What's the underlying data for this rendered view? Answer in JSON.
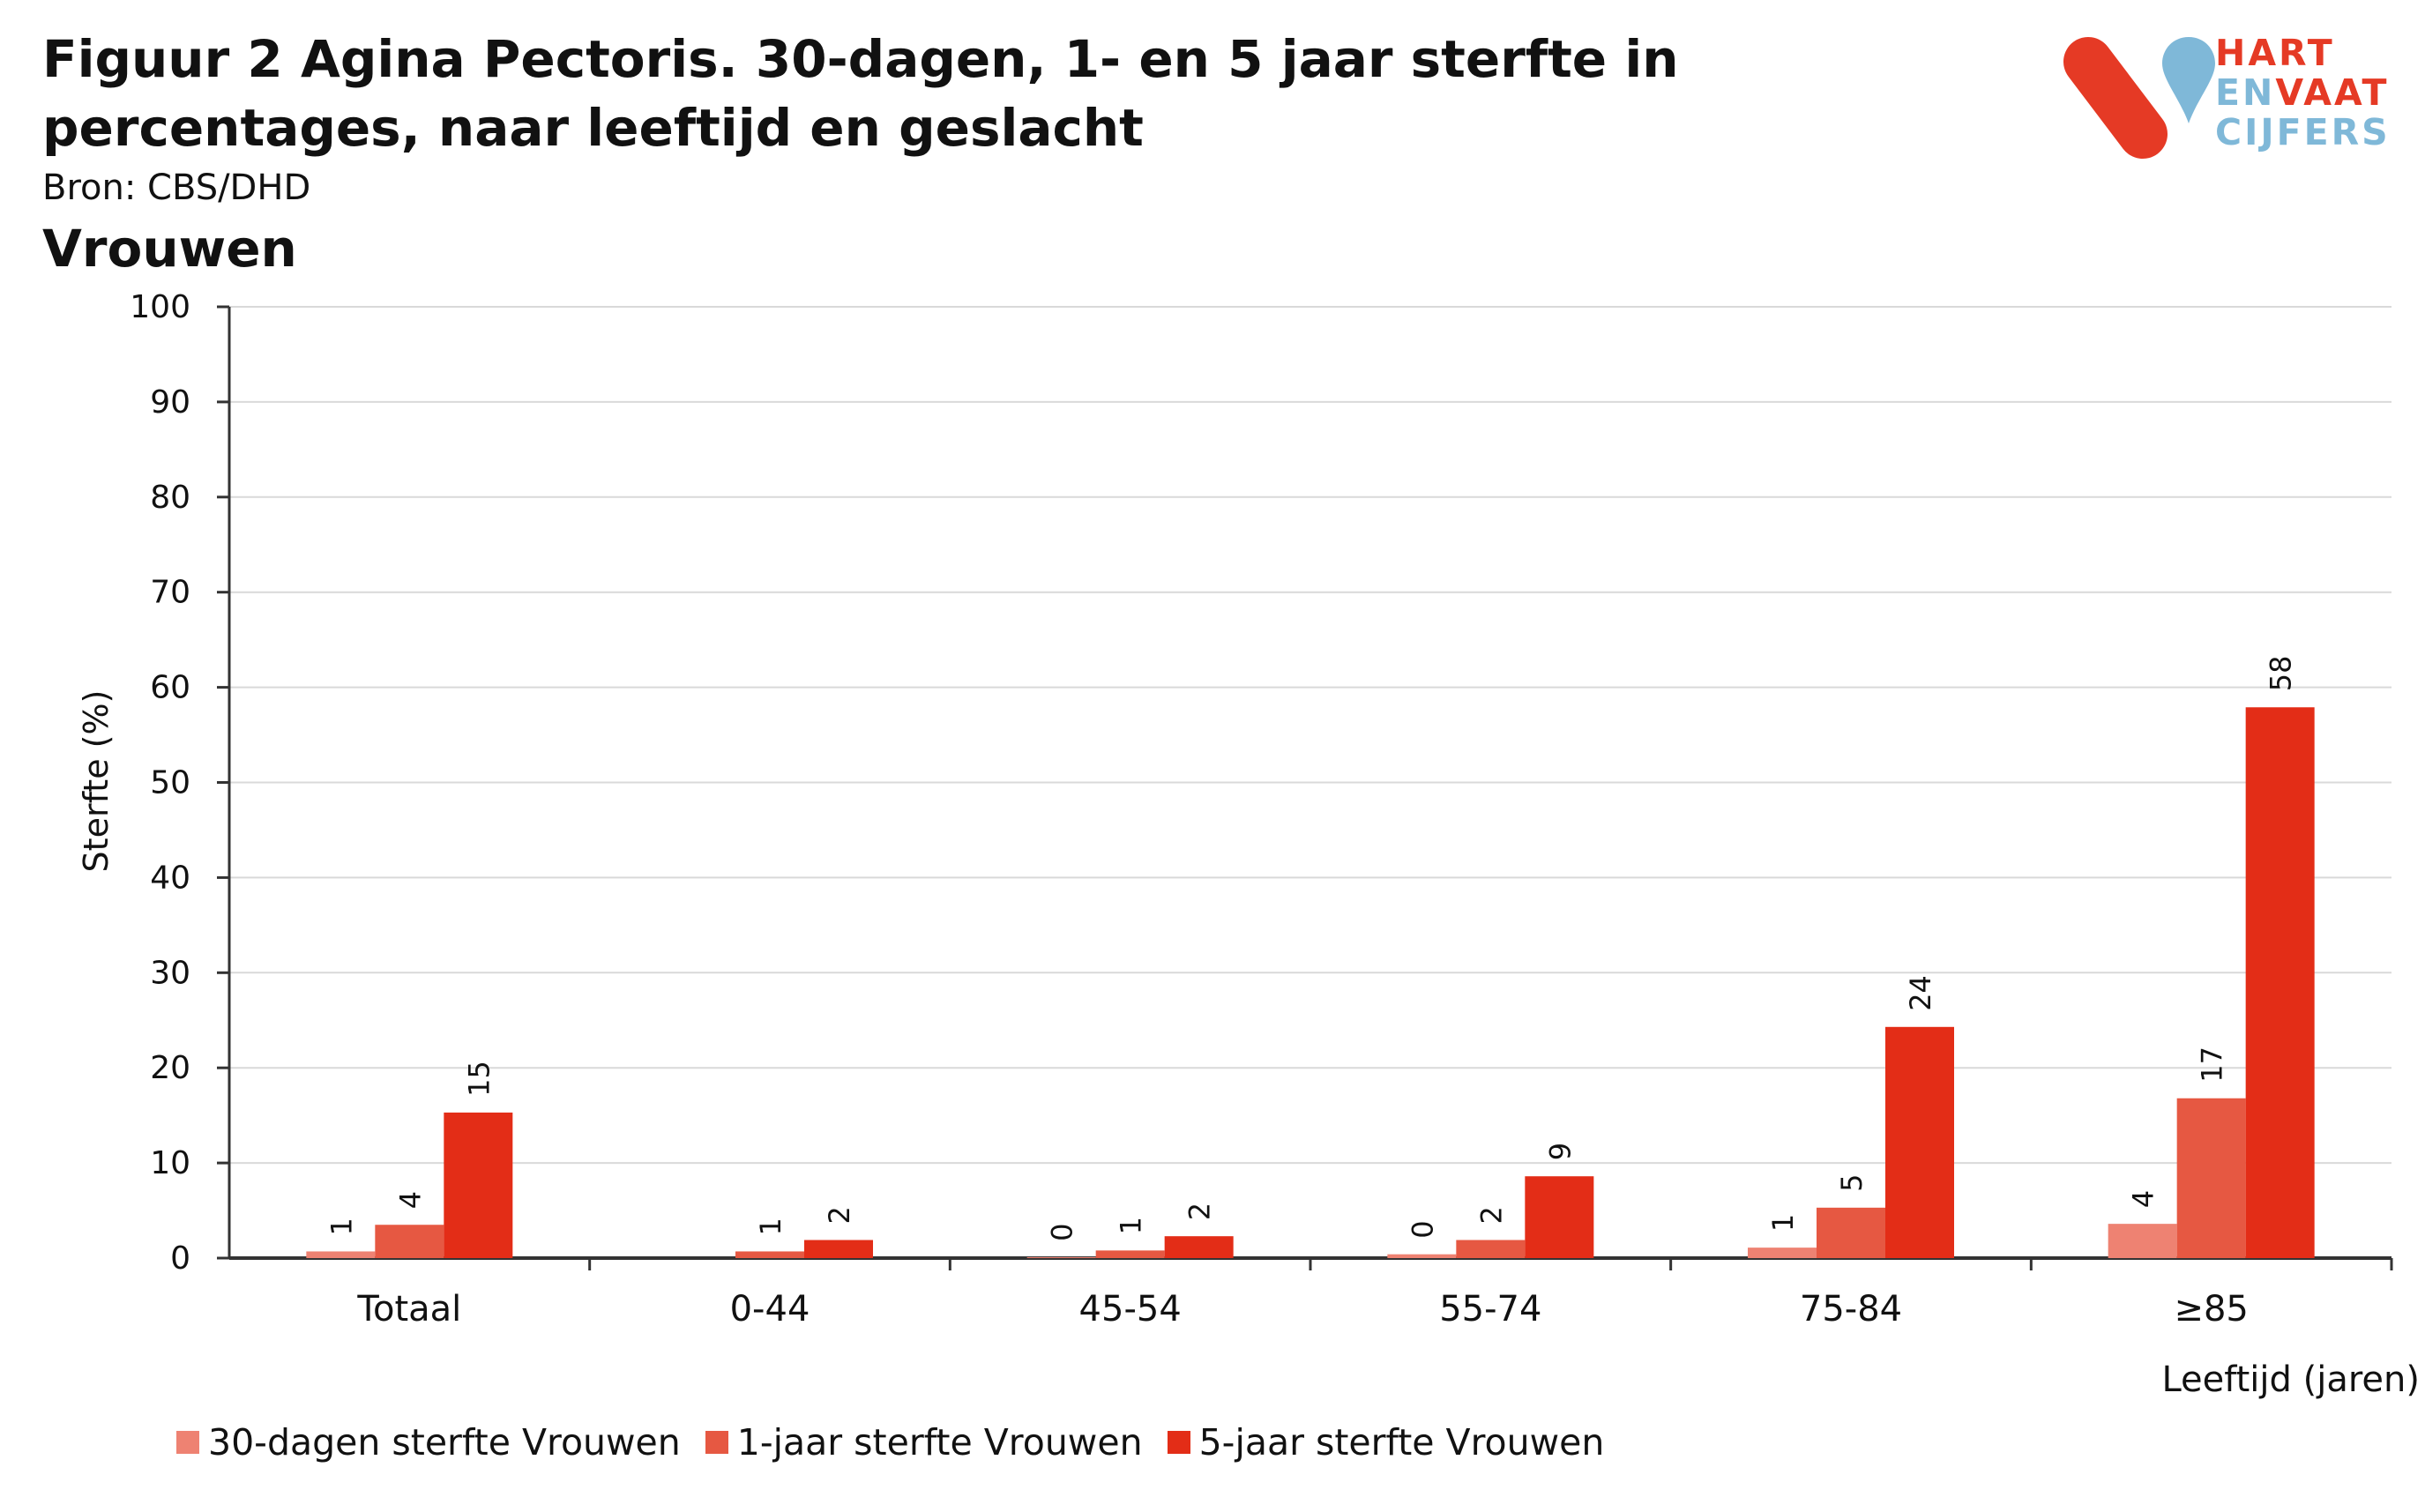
{
  "header": {
    "title": "Figuur 2 Agina Pectoris. 30-dagen, 1- en 5 jaar sterfte in percentages, naar leeftijd en geslacht",
    "source": "Bron: CBS/DHD",
    "subtitle": "Vrouwen"
  },
  "logo": {
    "line1": "HART",
    "line2a": "EN",
    "line2b": "VAAT",
    "line3": "CIJFERS",
    "red": "#e53a25",
    "blue": "#7fb8d8"
  },
  "chart_data": {
    "type": "bar",
    "xlabel": "Leeftijd (jaren)",
    "ylabel": "Sterfte (%)",
    "ylim": [
      0,
      100
    ],
    "yticks": [
      0,
      10,
      20,
      30,
      40,
      50,
      60,
      70,
      80,
      90,
      100
    ],
    "grid": true,
    "legend_position": "bottom-left",
    "categories": [
      "Totaal",
      "0-44",
      "45-54",
      "55-74",
      "75-84",
      "≥85"
    ],
    "series": [
      {
        "name": "30-dagen sterfte Vrouwen",
        "color": "#ee8272",
        "values": [
          0.7,
          null,
          0.1,
          0.4,
          1.1,
          3.6
        ],
        "labels": [
          "1",
          "",
          "0",
          "0",
          "1",
          "4"
        ]
      },
      {
        "name": "1-jaar sterfte Vrouwen",
        "color": "#e65842",
        "values": [
          3.5,
          0.7,
          0.8,
          1.9,
          5.3,
          16.8
        ],
        "labels": [
          "4",
          "1",
          "1",
          "2",
          "5",
          "17"
        ]
      },
      {
        "name": "5-jaar sterfte Vrouwen",
        "color": "#e32d17",
        "values": [
          15.3,
          1.9,
          2.3,
          8.6,
          24.3,
          57.9
        ],
        "labels": [
          "15",
          "2",
          "2",
          "9",
          "24",
          "58"
        ]
      }
    ]
  }
}
